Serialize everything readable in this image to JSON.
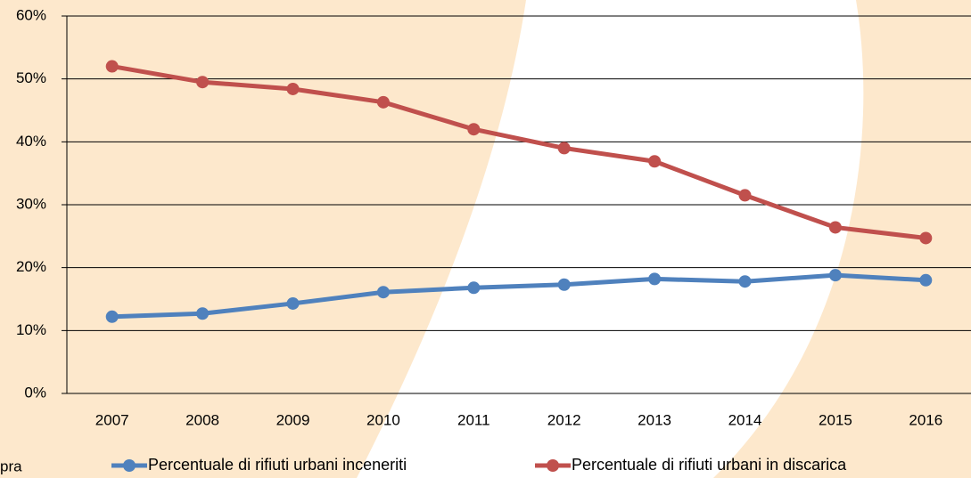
{
  "chart_data": {
    "type": "line",
    "categories": [
      "2007",
      "2008",
      "2009",
      "2010",
      "2011",
      "2012",
      "2013",
      "2014",
      "2015",
      "2016"
    ],
    "series": [
      {
        "name": "Percentuale di rifiuti urbani inceneriti",
        "color": "#4f81bd",
        "values": [
          12.2,
          12.7,
          14.3,
          16.1,
          16.8,
          17.3,
          18.2,
          17.8,
          18.8,
          18.0
        ]
      },
      {
        "name": "Percentuale di rifiuti urbani in discarica",
        "color": "#c0504d",
        "values": [
          52,
          49.5,
          48.4,
          46.3,
          42.0,
          39.0,
          36.9,
          31.5,
          26.4,
          24.7
        ]
      }
    ],
    "ylim": [
      0,
      60
    ],
    "yticks": [
      {
        "value": 0,
        "label": "0%"
      },
      {
        "value": 10,
        "label": "10%"
      },
      {
        "value": 20,
        "label": "20%"
      },
      {
        "value": 30,
        "label": "30%"
      },
      {
        "value": 40,
        "label": "40%"
      },
      {
        "value": 50,
        "label": "50%"
      },
      {
        "value": 60,
        "label": "60%"
      }
    ],
    "grid": true,
    "legend": "bottom",
    "annotations": [
      "pra"
    ]
  }
}
